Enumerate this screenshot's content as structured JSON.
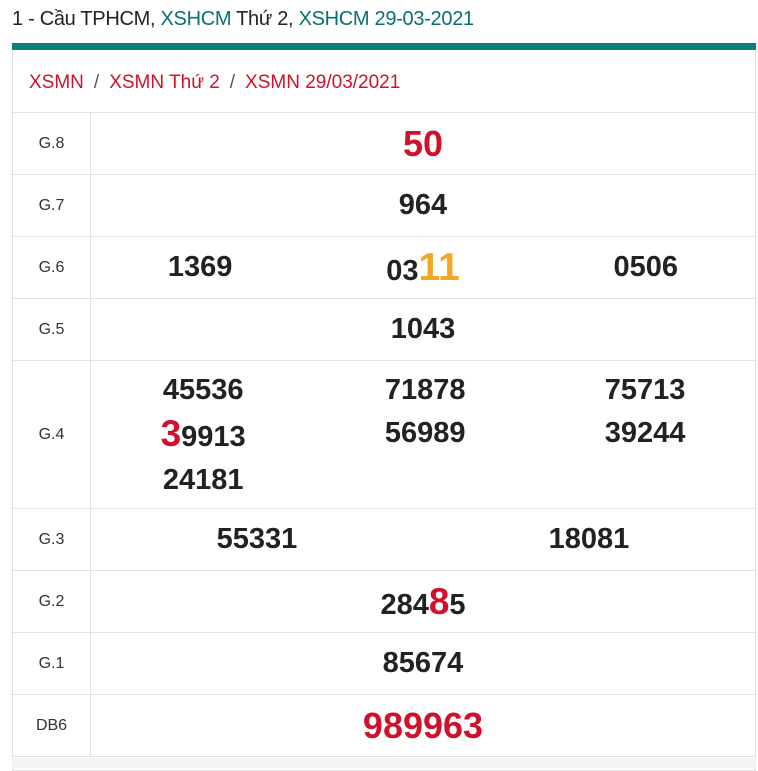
{
  "header": {
    "prefix": "1 - Cầu TPHCM, ",
    "link1": "XSHCM",
    "mid": " Thứ 2, ",
    "link2": "XSHCM 29-03-2021"
  },
  "breadcrumb": [
    "XSMN",
    "XSMN Thứ 2",
    "XSMN 29/03/2021"
  ],
  "colors": {
    "accent": "#0a8080",
    "red": "#d0112b",
    "orange": "#f5a623"
  },
  "results": [
    {
      "label": "G.8",
      "numbers": [
        [
          {
            "t": "50",
            "s": "g8"
          }
        ]
      ]
    },
    {
      "label": "G.7",
      "numbers": [
        [
          {
            "t": "964"
          }
        ]
      ]
    },
    {
      "label": "G.6",
      "numbers": [
        [
          {
            "t": "1369"
          }
        ],
        [
          {
            "t": "03"
          },
          {
            "t": "11",
            "s": "or"
          }
        ],
        [
          {
            "t": "0506"
          }
        ]
      ]
    },
    {
      "label": "G.5",
      "numbers": [
        [
          {
            "t": "1043"
          }
        ]
      ]
    },
    {
      "label": "G.4",
      "columns": [
        [
          [
            {
              "t": "45536"
            }
          ],
          [
            {
              "t": "3",
              "s": "hl"
            },
            {
              "t": "9913"
            }
          ],
          [
            {
              "t": "24181"
            }
          ]
        ],
        [
          [
            {
              "t": "71878"
            }
          ],
          [
            {
              "t": "56989"
            }
          ]
        ],
        [
          [
            {
              "t": "75713"
            }
          ],
          [
            {
              "t": "39244"
            }
          ]
        ]
      ]
    },
    {
      "label": "G.3",
      "numbers": [
        [
          {
            "t": "55331"
          }
        ],
        [
          {
            "t": "18081"
          }
        ]
      ]
    },
    {
      "label": "G.2",
      "numbers": [
        [
          {
            "t": "284"
          },
          {
            "t": "8",
            "s": "hl"
          },
          {
            "t": "5"
          }
        ]
      ]
    },
    {
      "label": "G.1",
      "numbers": [
        [
          {
            "t": "85674"
          }
        ]
      ]
    },
    {
      "label": "DB6",
      "numbers": [
        [
          {
            "t": "989963",
            "s": "db"
          }
        ]
      ]
    }
  ]
}
